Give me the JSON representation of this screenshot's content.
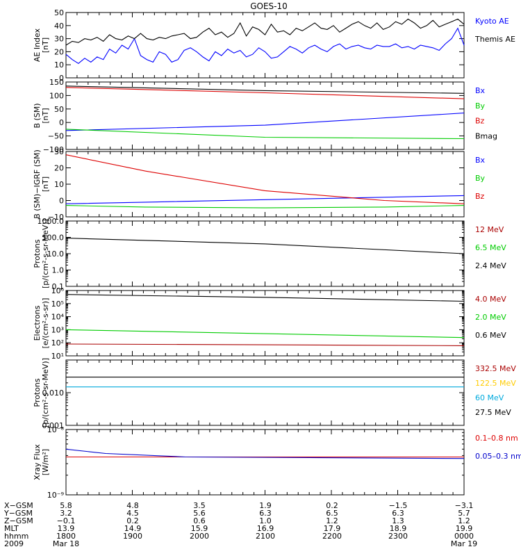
{
  "title": "GOES-10",
  "colors": {
    "black": "#000000",
    "blue": "#0000ff",
    "red": "#dd0000",
    "green": "#00cc00",
    "darkred": "#aa0000",
    "orange": "#ffcc00",
    "cyan": "#00aadd",
    "navy": "#0000cc"
  },
  "chart_data": [
    {
      "type": "line",
      "ylabel": [
        "AE Index",
        "[nT]"
      ],
      "ylim": [
        0,
        50
      ],
      "yticks": [
        "0",
        "10",
        "20",
        "30",
        "40",
        "50"
      ],
      "tickvals": [
        0,
        10,
        20,
        30,
        40,
        50
      ],
      "legend": [
        {
          "label": "Kyoto AE",
          "color": "blue"
        },
        {
          "label": "Themis AE",
          "color": "black"
        }
      ],
      "series": [
        {
          "name": "Kyoto AE",
          "color": "blue",
          "values": [
            18,
            14,
            11,
            15,
            12,
            16,
            14,
            22,
            19,
            25,
            22,
            30,
            17,
            14,
            12,
            20,
            18,
            12,
            14,
            21,
            23,
            20,
            16,
            13,
            20,
            17,
            22,
            19,
            21,
            16,
            18,
            23,
            20,
            15,
            16,
            20,
            24,
            22,
            19,
            23,
            25,
            22,
            20,
            24,
            26,
            22,
            24,
            25,
            23,
            22,
            25,
            24,
            24,
            26,
            23,
            24,
            22,
            25,
            24,
            23,
            21,
            26,
            30,
            38,
            25
          ]
        },
        {
          "name": "Themis AE",
          "color": "black",
          "values": [
            25,
            28,
            27,
            30,
            29,
            31,
            28,
            33,
            30,
            29,
            32,
            30,
            34,
            30,
            29,
            31,
            30,
            32,
            33,
            34,
            30,
            31,
            35,
            38,
            33,
            35,
            31,
            34,
            42,
            32,
            39,
            37,
            33,
            41,
            35,
            36,
            33,
            38,
            36,
            39,
            42,
            38,
            37,
            40,
            35,
            38,
            41,
            43,
            40,
            38,
            42,
            37,
            39,
            43,
            41,
            45,
            42,
            38,
            40,
            44,
            39,
            41,
            43,
            45,
            41
          ]
        }
      ]
    },
    {
      "type": "line",
      "ylabel": [
        "B (SM)",
        "[nT]"
      ],
      "ylim": [
        -100,
        150
      ],
      "yticks": [
        "−100",
        "−50",
        "0",
        "50",
        "100",
        "150"
      ],
      "tickvals": [
        -100,
        -50,
        0,
        50,
        100,
        150
      ],
      "legend": [
        {
          "label": "Bx",
          "color": "blue"
        },
        {
          "label": "By",
          "color": "green"
        },
        {
          "label": "Bz",
          "color": "red"
        },
        {
          "label": "Bmag",
          "color": "black"
        }
      ],
      "series": [
        {
          "name": "Bx",
          "color": "blue",
          "x": [
            0,
            0.5,
            1
          ],
          "values": [
            -30,
            -10,
            35
          ]
        },
        {
          "name": "By",
          "color": "green",
          "x": [
            0,
            0.5,
            1
          ],
          "values": [
            -25,
            -55,
            -60
          ]
        },
        {
          "name": "Bz",
          "color": "red",
          "x": [
            0,
            0.5,
            1
          ],
          "values": [
            130,
            110,
            88
          ]
        },
        {
          "name": "Bmag",
          "color": "black",
          "x": [
            0,
            0.5,
            1
          ],
          "values": [
            135,
            118,
            108
          ]
        }
      ]
    },
    {
      "type": "line",
      "ylabel": [
        "B (SM)−IGRF (SM)",
        "[nT]"
      ],
      "ylim": [
        -10,
        30
      ],
      "yticks": [
        "−10",
        "0",
        "10",
        "20",
        "30"
      ],
      "tickvals": [
        -10,
        0,
        10,
        20,
        30
      ],
      "legend": [
        {
          "label": "Bx",
          "color": "blue"
        },
        {
          "label": "By",
          "color": "green"
        },
        {
          "label": "Bz",
          "color": "red"
        }
      ],
      "series": [
        {
          "name": "Bx",
          "color": "blue",
          "x": [
            0,
            0.2,
            0.5,
            0.8,
            1
          ],
          "values": [
            -2,
            -1,
            0.5,
            2,
            3
          ]
        },
        {
          "name": "By",
          "color": "green",
          "x": [
            0,
            0.2,
            0.5,
            0.8,
            1
          ],
          "values": [
            -3,
            -4,
            -4.5,
            -4,
            -3
          ]
        },
        {
          "name": "Bz",
          "color": "red",
          "x": [
            0,
            0.2,
            0.5,
            0.8,
            1
          ],
          "values": [
            28,
            18,
            6,
            0,
            -2
          ]
        }
      ]
    },
    {
      "type": "line",
      "scale": "log",
      "ylabel": [
        "Protons",
        "[p/(cm²-s-sr-MeV)]"
      ],
      "ylim": [
        0.1,
        1000
      ],
      "yticks": [
        "0.1",
        "1.0",
        "10.0",
        "100.0",
        "1000.0"
      ],
      "tickvals": [
        0.1,
        1,
        10,
        100,
        1000
      ],
      "legend": [
        {
          "label": "12 MeV",
          "color": "darkred"
        },
        {
          "label": "6.5 MeV",
          "color": "green"
        },
        {
          "label": "2.4 MeV",
          "color": "black"
        }
      ],
      "series": [
        {
          "name": "2.4 MeV",
          "color": "black",
          "x": [
            0,
            0.5,
            1
          ],
          "values": [
            90,
            40,
            10
          ]
        }
      ]
    },
    {
      "type": "line",
      "scale": "log",
      "ylabel": [
        "Electrons",
        "[e/(cm²-s-sr)]"
      ],
      "ylim": [
        10,
        1000000
      ],
      "yticks": [
        "10¹",
        "10²",
        "10³",
        "10⁴",
        "10⁵",
        "10⁶"
      ],
      "tickvals": [
        10,
        100,
        1000,
        10000,
        100000,
        1000000
      ],
      "legend": [
        {
          "label": "4.0 MeV",
          "color": "darkred"
        },
        {
          "label": "2.0 MeV",
          "color": "green"
        },
        {
          "label": "0.6 MeV",
          "color": "black"
        }
      ],
      "series": [
        {
          "name": "0.6 MeV",
          "color": "black",
          "x": [
            0,
            0.5,
            1
          ],
          "values": [
            500000,
            300000,
            150000
          ]
        },
        {
          "name": "2.0 MeV",
          "color": "green",
          "x": [
            0,
            0.5,
            1
          ],
          "values": [
            1000,
            500,
            250
          ]
        },
        {
          "name": "4.0 MeV",
          "color": "darkred",
          "x": [
            0,
            0.5,
            1
          ],
          "values": [
            80,
            70,
            60
          ]
        }
      ]
    },
    {
      "type": "line",
      "scale": "log",
      "ylabel": [
        "Protons",
        "[p/(cm²-s-sr-MeV)]"
      ],
      "ylim": [
        0.001,
        0.1
      ],
      "yticks": [
        "0.001",
        "0.010"
      ],
      "tickvals": [
        0.001,
        0.01
      ],
      "legend": [
        {
          "label": "332.5 MeV",
          "color": "darkred"
        },
        {
          "label": "122.5 MeV",
          "color": "orange"
        },
        {
          "label": "60 MeV",
          "color": "cyan"
        },
        {
          "label": "27.5 MeV",
          "color": "black"
        }
      ],
      "series": [
        {
          "name": "27.5 MeV",
          "color": "black",
          "x": [
            0,
            1
          ],
          "values": [
            0.03,
            0.03
          ]
        },
        {
          "name": "60 MeV",
          "color": "cyan",
          "x": [
            0,
            1
          ],
          "values": [
            0.015,
            0.015
          ]
        }
      ]
    },
    {
      "type": "line",
      "scale": "log",
      "ylabel": [
        "Xray Flux",
        "[W/m²]"
      ],
      "ylim": [
        1e-09,
        1e-08
      ],
      "yticks": [
        "10⁻⁸",
        "10⁻⁹"
      ],
      "tickvals": [
        1e-08,
        1e-09
      ],
      "legend": [
        {
          "label": "0.1–0.8 nm",
          "color": "red"
        },
        {
          "label": "0.05–0.3 nm",
          "color": "navy"
        }
      ],
      "series": [
        {
          "name": "0.1–0.8 nm",
          "color": "red",
          "x": [
            0,
            1
          ],
          "values": [
            3.8e-09,
            3.8e-09
          ]
        },
        {
          "name": "0.05–0.3 nm",
          "color": "navy",
          "x": [
            0,
            0.1,
            0.3,
            1
          ],
          "values": [
            5e-09,
            4.3e-09,
            3.8e-09,
            3.6e-09
          ]
        }
      ]
    }
  ],
  "footer": {
    "row_labels": [
      "X−GSM",
      "Y−GSM",
      "Z−GSM",
      "MLT",
      "hhmm",
      "2009"
    ],
    "columns": [
      [
        "5.8",
        "3.2",
        "−0.1",
        "13.9",
        "1800",
        "Mar 18"
      ],
      [
        "4.8",
        "4.5",
        "0.2",
        "14.9",
        "1900",
        ""
      ],
      [
        "3.5",
        "5.6",
        "0.6",
        "15.9",
        "2000",
        ""
      ],
      [
        "1.9",
        "6.3",
        "1.0",
        "16.9",
        "2100",
        ""
      ],
      [
        "0.2",
        "6.5",
        "1.2",
        "17.9",
        "2200",
        ""
      ],
      [
        "−1.5",
        "6.3",
        "1.3",
        "18.9",
        "2300",
        ""
      ],
      [
        "−3.1",
        "5.7",
        "1.2",
        "19.9",
        "0000",
        "Mar 19"
      ]
    ]
  }
}
